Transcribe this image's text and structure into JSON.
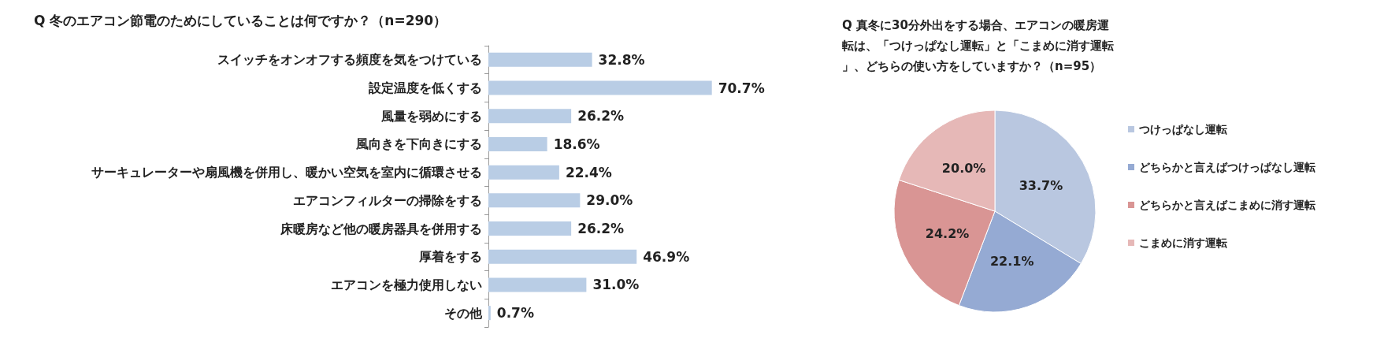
{
  "chart_data": [
    {
      "type": "bar",
      "orientation": "horizontal",
      "title": "Q 冬のエアコン節電のためにしていることは何ですか？（n=290）",
      "categories": [
        "スイッチをオンオフする頻度を気をつけている",
        "設定温度を低くする",
        "風量を弱めにする",
        "風向きを下向きにする",
        "サーキュレーターや扇風機を併用し、暖かい空気を室内に循環させる",
        "エアコンフィルターの掃除をする",
        "床暖房など他の暖房器具を併用する",
        "厚着をする",
        "エアコンを極力使用しない",
        "その他"
      ],
      "values": [
        32.8,
        70.7,
        26.2,
        18.6,
        22.4,
        29.0,
        26.2,
        46.9,
        31.0,
        0.7
      ],
      "value_labels": [
        "32.8%",
        "70.7%",
        "26.2%",
        "18.6%",
        "22.4%",
        "29.0%",
        "26.2%",
        "46.9%",
        "31.0%",
        "0.7%"
      ],
      "color": "#b9cde5",
      "tick_labels": "y"
    },
    {
      "type": "pie",
      "title": "Q 真冬に30分外出をする場合、エアコンの暖房運転は、「つけっぱなし運転」と「こまめに消す運転」、どちらの使い方をしていますか？（n=95）",
      "categories": [
        "つけっぱなし運転",
        "どちらかと言えばつけっぱなし運転",
        "どちらかと言えばこまめに消す運転",
        "こまめに消す運転"
      ],
      "values": [
        33.7,
        22.1,
        24.2,
        20.0
      ],
      "value_labels": [
        "33.7%",
        "22.1%",
        "24.2%",
        "20.0%"
      ],
      "colors": [
        "#b9c7e0",
        "#95aad3",
        "#d99594",
        "#e6b8b7"
      ],
      "legend": "right"
    }
  ]
}
